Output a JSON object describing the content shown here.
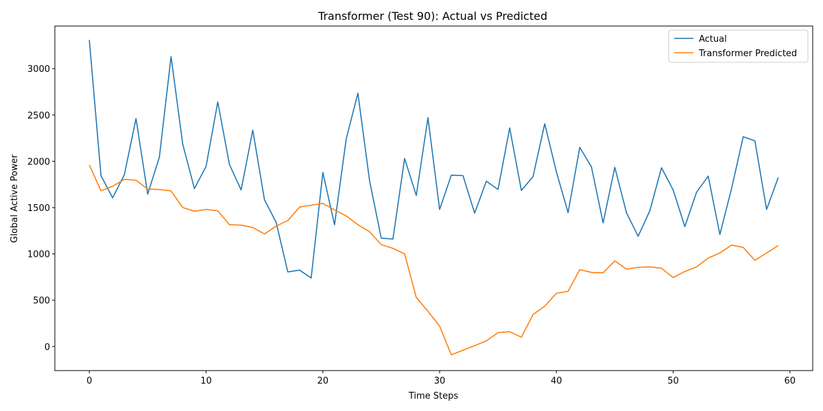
{
  "chart_data": {
    "type": "line",
    "title": "Transformer (Test 90): Actual vs Predicted",
    "xlabel": "Time Steps",
    "ylabel": "Global Active Power",
    "xlim": [
      -2.95,
      61.95
    ],
    "ylim": [
      -260,
      3460
    ],
    "xticks": [
      0,
      10,
      20,
      30,
      40,
      50,
      60
    ],
    "yticks": [
      0,
      500,
      1000,
      1500,
      2000,
      2500,
      3000
    ],
    "grid": false,
    "legend_position": "top-right",
    "x": [
      0,
      1,
      2,
      3,
      4,
      5,
      6,
      7,
      8,
      9,
      10,
      11,
      12,
      13,
      14,
      15,
      16,
      17,
      18,
      19,
      20,
      21,
      22,
      23,
      24,
      25,
      26,
      27,
      28,
      29,
      30,
      31,
      32,
      33,
      34,
      35,
      36,
      37,
      38,
      39,
      40,
      41,
      42,
      43,
      44,
      45,
      46,
      47,
      48,
      49,
      50,
      51,
      52,
      53,
      54,
      55,
      56,
      57,
      58,
      59
    ],
    "series": [
      {
        "name": "Actual",
        "color": "#1f77b4",
        "values": [
          3310,
          1845,
          1605,
          1855,
          2460,
          1645,
          2045,
          3130,
          2185,
          1705,
          1945,
          2640,
          1965,
          1690,
          2335,
          1585,
          1340,
          805,
          825,
          740,
          1880,
          1315,
          2240,
          2735,
          1790,
          1170,
          1160,
          2030,
          1630,
          2470,
          1480,
          1850,
          1845,
          1440,
          1785,
          1695,
          2360,
          1685,
          1835,
          2405,
          1885,
          1445,
          2150,
          1940,
          1335,
          1935,
          1445,
          1190,
          1465,
          1930,
          1690,
          1295,
          1665,
          1840,
          1210,
          1705,
          2265,
          2220,
          1480,
          1825
        ]
      },
      {
        "name": "Transformer Predicted",
        "color": "#ff7f0e",
        "values": [
          1960,
          1680,
          1730,
          1805,
          1795,
          1700,
          1695,
          1680,
          1500,
          1460,
          1480,
          1465,
          1315,
          1310,
          1285,
          1215,
          1300,
          1360,
          1505,
          1525,
          1545,
          1475,
          1410,
          1315,
          1240,
          1100,
          1060,
          1000,
          530,
          380,
          220,
          -90,
          -40,
          10,
          60,
          150,
          160,
          100,
          345,
          435,
          575,
          595,
          830,
          800,
          795,
          925,
          835,
          855,
          860,
          845,
          745,
          810,
          860,
          955,
          1010,
          1095,
          1070,
          930,
          1010,
          1090
        ]
      }
    ]
  }
}
